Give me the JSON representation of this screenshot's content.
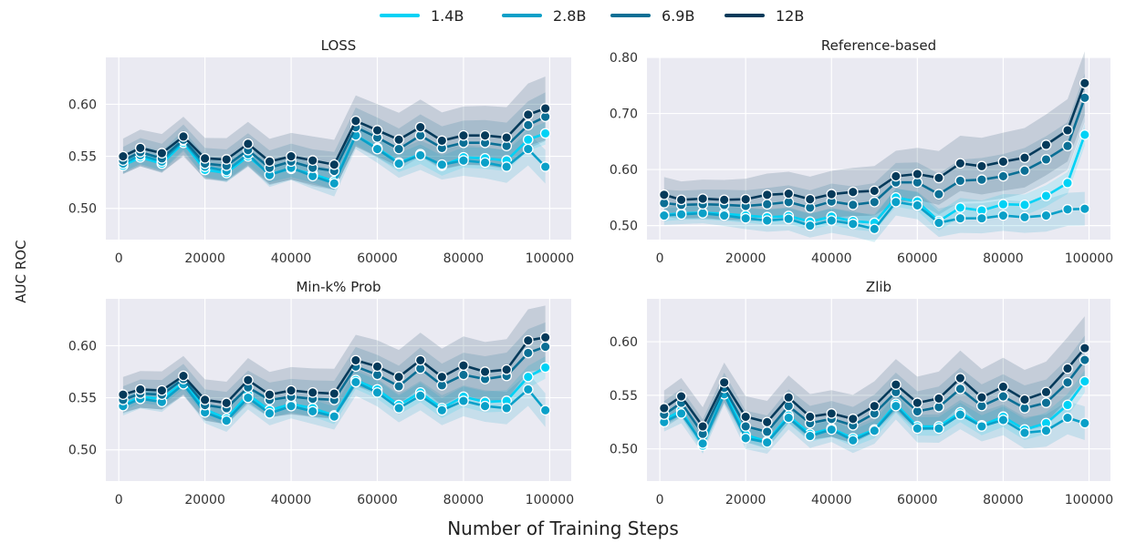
{
  "chart_data": {
    "type": "line",
    "legend": {
      "placement": "top-center",
      "entries": [
        {
          "name": "1.4B",
          "color": "#00d2f5"
        },
        {
          "name": "2.8B",
          "color": "#0aa0c8"
        },
        {
          "name": "6.9B",
          "color": "#0b6f95"
        },
        {
          "name": "12B",
          "color": "#053a5a"
        }
      ]
    },
    "xlabel": "Number of Training Steps",
    "ylabel": "AUC ROC",
    "grid": true,
    "panels": [
      {
        "title": "LOSS",
        "xlim": [
          -3000,
          105000
        ],
        "ylim": [
          0.47,
          0.645
        ],
        "yticks": [
          "0.50",
          "0.55",
          "0.60"
        ],
        "ytick_values": [
          0.5,
          0.55,
          0.6
        ],
        "xticks": [
          "0",
          "20000",
          "40000",
          "60000",
          "80000",
          "100000"
        ],
        "x": [
          1000,
          5000,
          10000,
          15000,
          20000,
          25000,
          30000,
          35000,
          40000,
          45000,
          50000,
          55000,
          60000,
          65000,
          70000,
          75000,
          80000,
          85000,
          90000,
          95000,
          99000
        ],
        "series": [
          {
            "name": "1.4B",
            "values": [
              0.541,
              0.549,
              0.543,
              0.563,
              0.537,
              0.534,
              0.55,
              0.533,
              0.538,
              0.533,
              0.526,
              0.57,
              0.558,
              0.544,
              0.552,
              0.541,
              0.549,
              0.548,
              0.546,
              0.566,
              0.572
            ]
          },
          {
            "name": "2.8B",
            "values": [
              0.543,
              0.551,
              0.545,
              0.565,
              0.54,
              0.536,
              0.552,
              0.532,
              0.539,
              0.531,
              0.524,
              0.57,
              0.557,
              0.543,
              0.551,
              0.542,
              0.546,
              0.544,
              0.54,
              0.557,
              0.54
            ]
          },
          {
            "name": "6.9B",
            "values": [
              0.546,
              0.554,
              0.548,
              0.566,
              0.543,
              0.541,
              0.556,
              0.539,
              0.545,
              0.539,
              0.536,
              0.578,
              0.568,
              0.557,
              0.57,
              0.558,
              0.563,
              0.563,
              0.56,
              0.58,
              0.588
            ]
          },
          {
            "name": "12B",
            "values": [
              0.55,
              0.558,
              0.553,
              0.569,
              0.548,
              0.547,
              0.562,
              0.545,
              0.55,
              0.546,
              0.542,
              0.584,
              0.575,
              0.566,
              0.578,
              0.565,
              0.57,
              0.57,
              0.568,
              0.59,
              0.596
            ]
          }
        ]
      },
      {
        "title": "Reference-based",
        "xlim": [
          -3000,
          105000
        ],
        "ylim": [
          0.475,
          0.8
        ],
        "yticks": [
          "0.50",
          "0.60",
          "0.70",
          "0.80"
        ],
        "ytick_values": [
          0.5,
          0.6,
          0.7,
          0.8
        ],
        "xticks": [
          "0",
          "20000",
          "40000",
          "60000",
          "80000",
          "100000"
        ],
        "x": [
          1000,
          5000,
          10000,
          15000,
          20000,
          25000,
          30000,
          35000,
          40000,
          45000,
          50000,
          55000,
          60000,
          65000,
          70000,
          75000,
          80000,
          85000,
          90000,
          95000,
          99000
        ],
        "series": [
          {
            "name": "1.4B",
            "values": [
              0.519,
              0.522,
              0.523,
              0.521,
              0.518,
              0.515,
              0.517,
              0.507,
              0.516,
              0.508,
              0.505,
              0.55,
              0.543,
              0.508,
              0.532,
              0.527,
              0.538,
              0.537,
              0.553,
              0.576,
              0.662
            ]
          },
          {
            "name": "2.8B",
            "values": [
              0.518,
              0.52,
              0.522,
              0.518,
              0.513,
              0.509,
              0.512,
              0.5,
              0.509,
              0.503,
              0.494,
              0.542,
              0.536,
              0.505,
              0.513,
              0.513,
              0.518,
              0.515,
              0.518,
              0.529,
              0.53
            ]
          },
          {
            "name": "6.9B",
            "values": [
              0.54,
              0.537,
              0.538,
              0.537,
              0.535,
              0.538,
              0.542,
              0.532,
              0.543,
              0.537,
              0.542,
              0.577,
              0.577,
              0.556,
              0.58,
              0.582,
              0.588,
              0.598,
              0.618,
              0.642,
              0.728
            ]
          },
          {
            "name": "12B",
            "values": [
              0.555,
              0.546,
              0.548,
              0.546,
              0.547,
              0.555,
              0.557,
              0.547,
              0.556,
              0.56,
              0.562,
              0.588,
              0.592,
              0.585,
              0.611,
              0.606,
              0.614,
              0.621,
              0.644,
              0.67,
              0.754
            ]
          }
        ]
      },
      {
        "title": "Min-k% Prob",
        "xlim": [
          -3000,
          105000
        ],
        "ylim": [
          0.47,
          0.645
        ],
        "yticks": [
          "0.50",
          "0.55",
          "0.60"
        ],
        "ytick_values": [
          0.5,
          0.55,
          0.6
        ],
        "xticks": [
          "0",
          "20000",
          "40000",
          "60000",
          "80000",
          "100000"
        ],
        "x": [
          1000,
          5000,
          10000,
          15000,
          20000,
          25000,
          30000,
          35000,
          40000,
          45000,
          50000,
          55000,
          60000,
          65000,
          70000,
          75000,
          80000,
          85000,
          90000,
          95000,
          99000
        ],
        "series": [
          {
            "name": "1.4B",
            "values": [
              0.543,
              0.551,
              0.549,
              0.565,
              0.539,
              0.53,
              0.553,
              0.538,
              0.544,
              0.54,
              0.533,
              0.567,
              0.558,
              0.543,
              0.555,
              0.54,
              0.551,
              0.546,
              0.547,
              0.57,
              0.579
            ]
          },
          {
            "name": "2.8B",
            "values": [
              0.542,
              0.549,
              0.546,
              0.563,
              0.536,
              0.528,
              0.55,
              0.535,
              0.542,
              0.537,
              0.532,
              0.565,
              0.555,
              0.54,
              0.552,
              0.538,
              0.547,
              0.542,
              0.54,
              0.558,
              0.538
            ]
          },
          {
            "name": "6.9B",
            "values": [
              0.548,
              0.554,
              0.553,
              0.568,
              0.543,
              0.54,
              0.56,
              0.548,
              0.551,
              0.549,
              0.548,
              0.58,
              0.572,
              0.561,
              0.578,
              0.562,
              0.572,
              0.568,
              0.571,
              0.593,
              0.599
            ]
          },
          {
            "name": "12B",
            "values": [
              0.553,
              0.558,
              0.557,
              0.571,
              0.548,
              0.545,
              0.567,
              0.553,
              0.557,
              0.555,
              0.554,
              0.586,
              0.58,
              0.57,
              0.586,
              0.57,
              0.581,
              0.575,
              0.577,
              0.605,
              0.608
            ]
          }
        ]
      },
      {
        "title": "Zlib",
        "xlim": [
          -3000,
          105000
        ],
        "ylim": [
          0.47,
          0.64
        ],
        "yticks": [
          "0.50",
          "0.55",
          "0.60"
        ],
        "ytick_values": [
          0.5,
          0.55,
          0.6
        ],
        "xticks": [
          "0",
          "20000",
          "40000",
          "60000",
          "80000",
          "100000"
        ],
        "x": [
          1000,
          5000,
          10000,
          15000,
          20000,
          25000,
          30000,
          35000,
          40000,
          45000,
          50000,
          55000,
          60000,
          65000,
          70000,
          75000,
          80000,
          85000,
          90000,
          95000,
          99000
        ],
        "series": [
          {
            "name": "1.4B",
            "values": [
              0.527,
              0.536,
              0.503,
              0.554,
              0.513,
              0.507,
              0.531,
              0.514,
              0.519,
              0.51,
              0.518,
              0.542,
              0.521,
              0.521,
              0.534,
              0.522,
              0.53,
              0.518,
              0.524,
              0.541,
              0.563
            ]
          },
          {
            "name": "2.8B",
            "values": [
              0.525,
              0.533,
              0.505,
              0.551,
              0.51,
              0.506,
              0.529,
              0.512,
              0.518,
              0.508,
              0.517,
              0.54,
              0.519,
              0.519,
              0.532,
              0.521,
              0.527,
              0.515,
              0.517,
              0.529,
              0.524
            ]
          },
          {
            "name": "6.9B",
            "values": [
              0.532,
              0.543,
              0.514,
              0.557,
              0.521,
              0.516,
              0.54,
              0.524,
              0.528,
              0.522,
              0.533,
              0.553,
              0.535,
              0.539,
              0.556,
              0.54,
              0.549,
              0.538,
              0.543,
              0.562,
              0.583
            ]
          },
          {
            "name": "12B",
            "values": [
              0.538,
              0.549,
              0.521,
              0.562,
              0.53,
              0.525,
              0.548,
              0.53,
              0.533,
              0.528,
              0.54,
              0.56,
              0.543,
              0.547,
              0.566,
              0.548,
              0.558,
              0.546,
              0.553,
              0.575,
              0.594
            ]
          }
        ]
      }
    ]
  }
}
